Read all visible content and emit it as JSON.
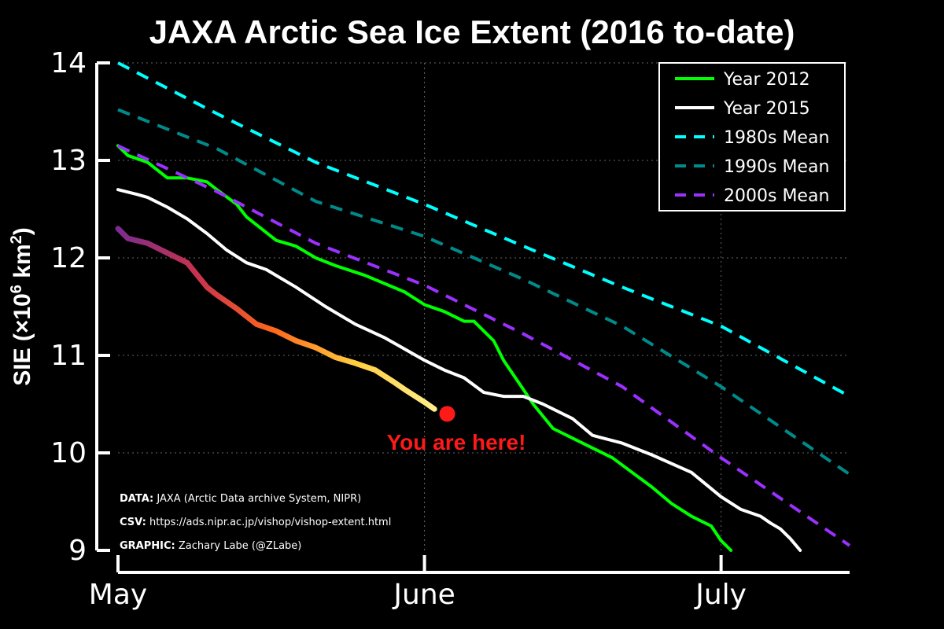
{
  "chart_data": {
    "type": "line",
    "title": "JAXA Arctic Sea Ice Extent (2016 to-date)",
    "xlabel": "",
    "ylabel_prefix": "SIE (×10",
    "ylabel_exp": "6",
    "ylabel_unit": " km",
    "ylabel_exp2": "2",
    "ylabel_suffix": ")",
    "xlim": [
      0,
      74
    ],
    "ylim": [
      9,
      14
    ],
    "x_ticks": [
      {
        "label": "May",
        "value": 0
      },
      {
        "label": "June",
        "value": 31
      },
      {
        "label": "July",
        "value": 61
      }
    ],
    "y_ticks": [
      {
        "label": "14",
        "value": 14
      },
      {
        "label": "13",
        "value": 13
      },
      {
        "label": "12",
        "value": 12
      },
      {
        "label": "11",
        "value": 11
      },
      {
        "label": "10",
        "value": 10
      },
      {
        "label": "9",
        "value": 9
      }
    ],
    "series": [
      {
        "name": "Year 2012",
        "color": "#00ff00",
        "style": "solid",
        "x": [
          0,
          1,
          3,
          5,
          7,
          9,
          10,
          12,
          13,
          16,
          18,
          20,
          22,
          25,
          29,
          31,
          33,
          35,
          36,
          38,
          39,
          41,
          42,
          44,
          46,
          48,
          50,
          52,
          54,
          56,
          58,
          60,
          61,
          62
        ],
        "y": [
          13.15,
          13.05,
          12.98,
          12.82,
          12.82,
          12.78,
          12.7,
          12.55,
          12.42,
          12.18,
          12.12,
          12,
          11.92,
          11.82,
          11.65,
          11.52,
          11.45,
          11.35,
          11.35,
          11.15,
          10.95,
          10.65,
          10.5,
          10.25,
          10.15,
          10.05,
          9.95,
          9.8,
          9.65,
          9.48,
          9.35,
          9.25,
          9.1,
          9
        ]
      },
      {
        "name": "Year 2015",
        "color": "#ffffff",
        "style": "solid",
        "x": [
          0,
          2,
          3,
          5,
          7,
          9,
          11,
          13,
          15,
          18,
          21,
          24,
          27,
          31,
          33,
          35,
          37,
          39,
          41,
          43,
          46,
          48,
          51,
          54,
          58,
          61,
          63,
          65,
          66,
          67,
          68,
          69
        ],
        "y": [
          12.7,
          12.65,
          12.62,
          12.52,
          12.4,
          12.25,
          12.08,
          11.95,
          11.88,
          11.7,
          11.5,
          11.32,
          11.18,
          10.95,
          10.85,
          10.77,
          10.62,
          10.58,
          10.58,
          10.5,
          10.35,
          10.18,
          10.1,
          9.98,
          9.8,
          9.55,
          9.42,
          9.35,
          9.28,
          9.22,
          9.12,
          9
        ]
      },
      {
        "name": "1980s Mean",
        "color": "#00ffff",
        "style": "dash",
        "x": [
          0,
          10,
          20,
          31,
          41,
          51,
          61,
          74
        ],
        "y": [
          14,
          13.48,
          12.98,
          12.55,
          12.12,
          11.7,
          11.3,
          10.58
        ]
      },
      {
        "name": "1990s Mean",
        "color": "#008b8b",
        "style": "dash",
        "x": [
          0,
          10,
          20,
          31,
          41,
          51,
          61,
          74
        ],
        "y": [
          13.52,
          13.12,
          12.58,
          12.22,
          11.78,
          11.3,
          10.68,
          9.78
        ]
      },
      {
        "name": "2000s Mean",
        "color": "#9b30ff",
        "style": "dash",
        "x": [
          0,
          10,
          20,
          31,
          41,
          51,
          61,
          74
        ],
        "y": [
          13.15,
          12.68,
          12.15,
          11.72,
          11.22,
          10.68,
          9.95,
          9.05
        ]
      },
      {
        "name": "2016",
        "color": "gradient",
        "style": "thick",
        "legend": false,
        "x": [
          0,
          1,
          3,
          5,
          7,
          9,
          10,
          12,
          14,
          16,
          18,
          20,
          22,
          24,
          26,
          28,
          29,
          31,
          32
        ],
        "y": [
          12.3,
          12.2,
          12.15,
          12.05,
          11.95,
          11.7,
          11.62,
          11.48,
          11.32,
          11.25,
          11.15,
          11.08,
          10.98,
          10.92,
          10.85,
          10.72,
          10.65,
          10.52,
          10.45
        ]
      }
    ],
    "marker": {
      "x": 33.3,
      "y": 10.4,
      "color": "#ff1a1a"
    },
    "annotation": "You are here!",
    "legend_position": "top-right",
    "grid": true,
    "gradient_colors": [
      "#7b2d8e",
      "#c8324e",
      "#ff6a1a",
      "#ffcc40",
      "#ffee88"
    ]
  },
  "credits": [
    {
      "label": "DATA:",
      "text": " JAXA (Arctic Data archive System, NIPR)"
    },
    {
      "label": "CSV:",
      "text": " https://ads.nipr.ac.jp/vishop/vishop-extent.html"
    },
    {
      "label": "GRAPHIC:",
      "text": " Zachary Labe (@ZLabe)"
    }
  ]
}
